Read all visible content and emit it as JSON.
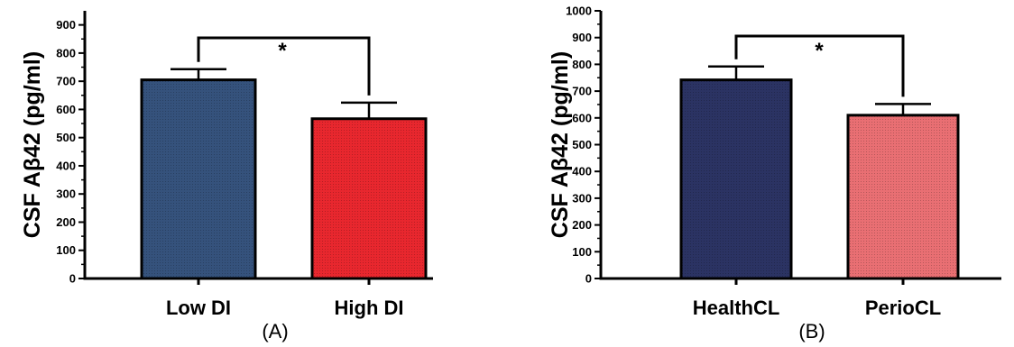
{
  "chart_data": [
    {
      "type": "bar",
      "panel_label": "(A)",
      "ylabel": "CSF Aβ42 (pg/ml)",
      "ylim": [
        0,
        950
      ],
      "yticks": [
        "0",
        "100",
        "200",
        "300",
        "400",
        "500",
        "600",
        "700",
        "800",
        "900"
      ],
      "categories": [
        "Low DI",
        "High DI"
      ],
      "values": [
        705,
        567
      ],
      "error": [
        38,
        57
      ],
      "colors": [
        "#35527c",
        "#e8272e"
      ],
      "significance": "*"
    },
    {
      "type": "bar",
      "panel_label": "(B)",
      "ylabel": "CSF Aβ42 (pg/ml)",
      "ylim": [
        0,
        1000
      ],
      "yticks": [
        "0",
        "100",
        "200",
        "300",
        "400",
        "500",
        "600",
        "700",
        "800",
        "900",
        "1000"
      ],
      "categories": [
        "HealthCL",
        "PerioCL"
      ],
      "values": [
        742,
        610
      ],
      "error": [
        50,
        42
      ],
      "colors": [
        "#2b3363",
        "#e96f73"
      ],
      "significance": "*"
    }
  ]
}
